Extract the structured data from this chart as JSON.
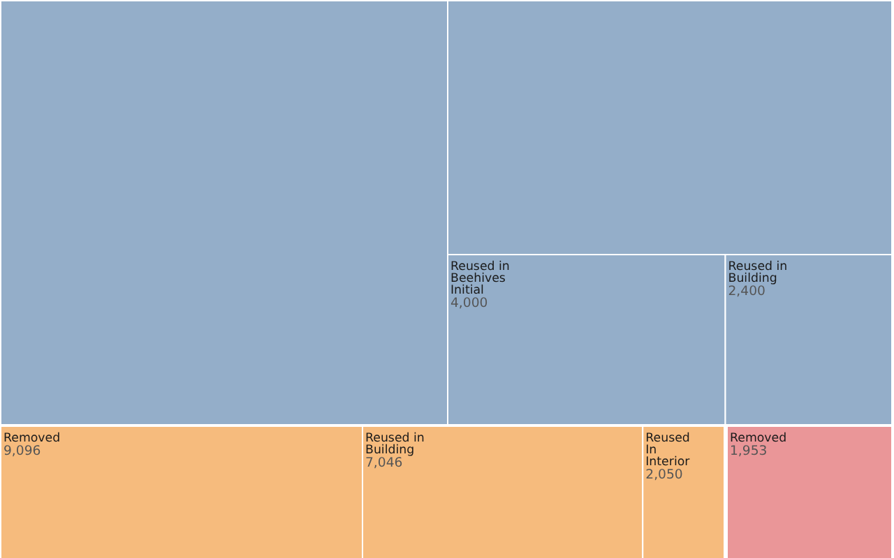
{
  "chart_data": {
    "type": "other",
    "categories": [
      null,
      null,
      "Reused in\nBeehives\nInitial",
      "Reused in\nBuilding",
      "Removed",
      "Reused in\nBuilding",
      "Reused\nIn\nInterior",
      "Removed"
    ],
    "values": [
      null,
      null,
      4000,
      2400,
      9096,
      7046,
      2050,
      1953
    ],
    "colors": [
      "#94aec9",
      "#94aec9",
      "#94aec9",
      "#94aec9",
      "#f6bb7d",
      "#f6bb7d",
      "#f6bb7d",
      "#ea9698"
    ],
    "value_labels": [
      null,
      null,
      "4,000",
      "2,400",
      "9,096",
      "7,046",
      "2,050",
      "1,953"
    ]
  }
}
